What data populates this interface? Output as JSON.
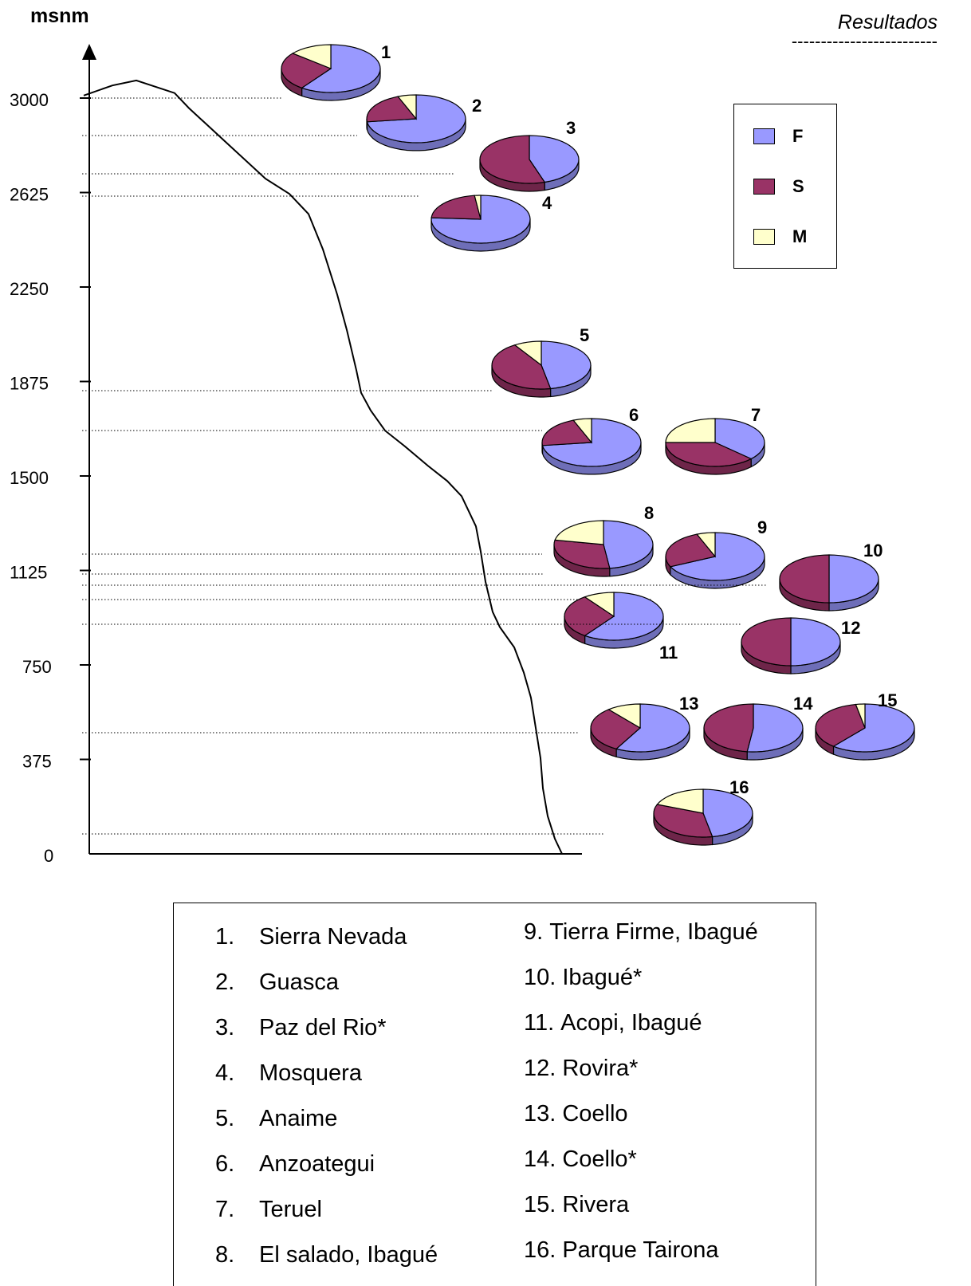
{
  "header": {
    "title": "Resultados",
    "rule": "-------------------------"
  },
  "chart_data": {
    "type": "pie",
    "ylabel": "msnm",
    "yticks": [
      0,
      375,
      750,
      1125,
      1500,
      1875,
      2250,
      2625,
      3000
    ],
    "ylim": [
      0,
      3200
    ],
    "legend_placement": "top-right",
    "categories": [
      "F",
      "S",
      "M"
    ],
    "colors": {
      "F": "#9999ff",
      "S": "#993366",
      "M": "#ffffcc"
    },
    "profile": [
      [
        0,
        3010
      ],
      [
        0.06,
        3050
      ],
      [
        0.11,
        3070
      ],
      [
        0.19,
        3020
      ],
      [
        0.22,
        2960
      ],
      [
        0.3,
        2820
      ],
      [
        0.38,
        2680
      ],
      [
        0.43,
        2620
      ],
      [
        0.47,
        2540
      ],
      [
        0.5,
        2400
      ],
      [
        0.53,
        2220
      ],
      [
        0.55,
        2080
      ],
      [
        0.57,
        1920
      ],
      [
        0.58,
        1830
      ],
      [
        0.6,
        1760
      ],
      [
        0.63,
        1680
      ],
      [
        0.67,
        1620
      ],
      [
        0.72,
        1540
      ],
      [
        0.76,
        1480
      ],
      [
        0.79,
        1420
      ],
      [
        0.8,
        1380
      ],
      [
        0.82,
        1300
      ],
      [
        0.83,
        1200
      ],
      [
        0.84,
        1080
      ],
      [
        0.855,
        960
      ],
      [
        0.87,
        900
      ],
      [
        0.9,
        820
      ],
      [
        0.92,
        720
      ],
      [
        0.935,
        620
      ],
      [
        0.945,
        500
      ],
      [
        0.955,
        380
      ],
      [
        0.96,
        260
      ],
      [
        0.97,
        150
      ],
      [
        0.985,
        60
      ],
      [
        1,
        0
      ]
    ],
    "sites": [
      {
        "id": 1,
        "label": "1",
        "name": "Sierra Nevada",
        "altitude": 3000,
        "F": 0.6,
        "S": 0.26,
        "M": 0.14
      },
      {
        "id": 2,
        "label": "2",
        "name": "Guasca",
        "altitude": 2850,
        "F": 0.73,
        "S": 0.21,
        "M": 0.06
      },
      {
        "id": 3,
        "label": "3",
        "name": "Paz del Rio*",
        "altitude": 2700,
        "F": 0.45,
        "S": 0.55,
        "M": 0.0
      },
      {
        "id": 4,
        "label": "4",
        "name": "Mosquera",
        "altitude": 2610,
        "F": 0.76,
        "S": 0.22,
        "M": 0.02
      },
      {
        "id": 5,
        "label": "5",
        "name": "Anaime",
        "altitude": 1840,
        "F": 0.47,
        "S": 0.44,
        "M": 0.09
      },
      {
        "id": 6,
        "label": "6",
        "name": "Anzoategui",
        "altitude": 1680,
        "F": 0.73,
        "S": 0.21,
        "M": 0.06
      },
      {
        "id": 7,
        "label": "7",
        "name": "Teruel",
        "altitude": 1680,
        "F": 0.37,
        "S": 0.38,
        "M": 0.25
      },
      {
        "id": 8,
        "label": "8",
        "name": "El salado, Ibagué",
        "altitude": 1190,
        "F": 0.48,
        "S": 0.3,
        "M": 0.22
      },
      {
        "id": 9,
        "label": "9",
        "name": "Tierra Firme, Ibagué",
        "altitude": 1110,
        "F": 0.68,
        "S": 0.26,
        "M": 0.06
      },
      {
        "id": 10,
        "label": "10",
        "name": "Ibagué*",
        "altitude": 1065,
        "F": 0.5,
        "S": 0.5,
        "M": 0.0
      },
      {
        "id": 11,
        "label": "11",
        "name": "Acopi, Ibagué",
        "altitude": 1010,
        "F": 0.6,
        "S": 0.3,
        "M": 0.1
      },
      {
        "id": 12,
        "label": "12",
        "name": "Rovira*",
        "altitude": 910,
        "F": 0.5,
        "S": 0.5,
        "M": 0.0
      },
      {
        "id": 13,
        "label": "13",
        "name": "Coello",
        "altitude": 480,
        "F": 0.58,
        "S": 0.31,
        "M": 0.11
      },
      {
        "id": 14,
        "label": "14",
        "name": "Coello*",
        "altitude": 480,
        "F": 0.52,
        "S": 0.48,
        "M": 0.0
      },
      {
        "id": 15,
        "label": "15",
        "name": "Rivera",
        "altitude": 480,
        "F": 0.61,
        "S": 0.36,
        "M": 0.03
      },
      {
        "id": 16,
        "label": "16",
        "name": "Parque Tairona",
        "altitude": 80,
        "F": 0.47,
        "S": 0.34,
        "M": 0.19
      }
    ]
  },
  "legend": [
    {
      "label": "F",
      "color": "#9999ff"
    },
    {
      "label": "S",
      "color": "#993366"
    },
    {
      "label": "M",
      "color": "#ffffcc"
    }
  ],
  "key": {
    "col1": [
      {
        "num": "1.",
        "name": "Sierra Nevada"
      },
      {
        "num": "2.",
        "name": "Guasca"
      },
      {
        "num": "3.",
        "name": "Paz del Rio*"
      },
      {
        "num": "4.",
        "name": "Mosquera"
      },
      {
        "num": "5.",
        "name": "Anaime"
      },
      {
        "num": "6.",
        "name": "Anzoategui"
      },
      {
        "num": "7.",
        "name": "Teruel"
      },
      {
        "num": "8.",
        "name": "El salado, Ibagué"
      }
    ],
    "col2": [
      {
        "num": "9.",
        "name": "Tierra Firme, Ibagué"
      },
      {
        "num": "10.",
        "name": "Ibagué*"
      },
      {
        "num": "11.",
        "name": "Acopi, Ibagué"
      },
      {
        "num": "12.",
        "name": "Rovira*"
      },
      {
        "num": "13.",
        "name": "Coello"
      },
      {
        "num": "14.",
        "name": "Coello*"
      },
      {
        "num": "15.",
        "name": "Rivera"
      },
      {
        "num": "16.",
        "name": "Parque Tairona"
      }
    ]
  }
}
